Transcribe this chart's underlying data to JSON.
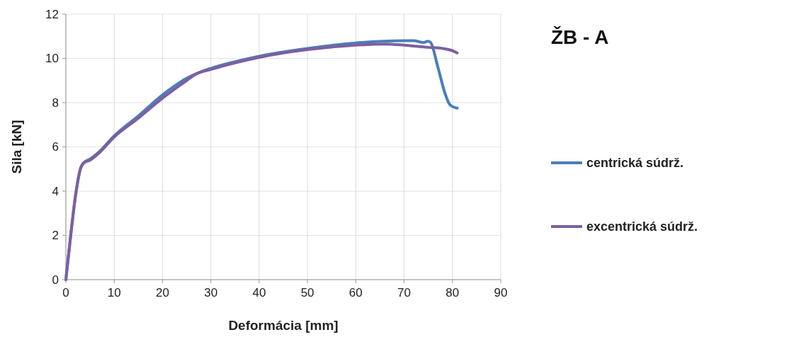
{
  "chart_data": {
    "type": "line",
    "title": "ŽB - A",
    "xlabel": "Deformácia  [mm]",
    "ylabel": "Sila [kN]",
    "xlim": [
      0,
      90
    ],
    "xticks": [
      0,
      10,
      20,
      30,
      40,
      50,
      60,
      70,
      80,
      90
    ],
    "ylim": [
      0,
      12
    ],
    "yticks": [
      0,
      2,
      4,
      6,
      8,
      10,
      12
    ],
    "grid": true,
    "legend": "right",
    "marker": "none",
    "line_style": "solid",
    "series": [
      {
        "name": "centrická súdrž.",
        "color": "#4a7ebb",
        "x": [
          0,
          1,
          2,
          3,
          3.8,
          5,
          7,
          10,
          15,
          20,
          25,
          28,
          30,
          35,
          40,
          50,
          60,
          70,
          72,
          74,
          75,
          75.5,
          77,
          78.5,
          79.5,
          81
        ],
        "values": [
          0,
          2,
          3.8,
          5,
          5.3,
          5.45,
          5.8,
          6.5,
          7.4,
          8.35,
          9.1,
          9.4,
          9.55,
          9.85,
          10.1,
          10.45,
          10.7,
          10.8,
          10.8,
          10.72,
          10.78,
          10.72,
          9.6,
          8.4,
          7.9,
          7.75
        ]
      },
      {
        "name": "excentrická súdrž.",
        "color": "#7d5fa0",
        "x": [
          0,
          1,
          2,
          3,
          3.8,
          5,
          7,
          10,
          15,
          20,
          25,
          27,
          30,
          35,
          40,
          50,
          60,
          66,
          70,
          75,
          78,
          80,
          81
        ],
        "values": [
          0,
          2,
          3.8,
          5,
          5.3,
          5.4,
          5.75,
          6.45,
          7.3,
          8.2,
          9.0,
          9.3,
          9.5,
          9.8,
          10.05,
          10.4,
          10.6,
          10.65,
          10.6,
          10.5,
          10.45,
          10.35,
          10.25
        ]
      }
    ]
  }
}
